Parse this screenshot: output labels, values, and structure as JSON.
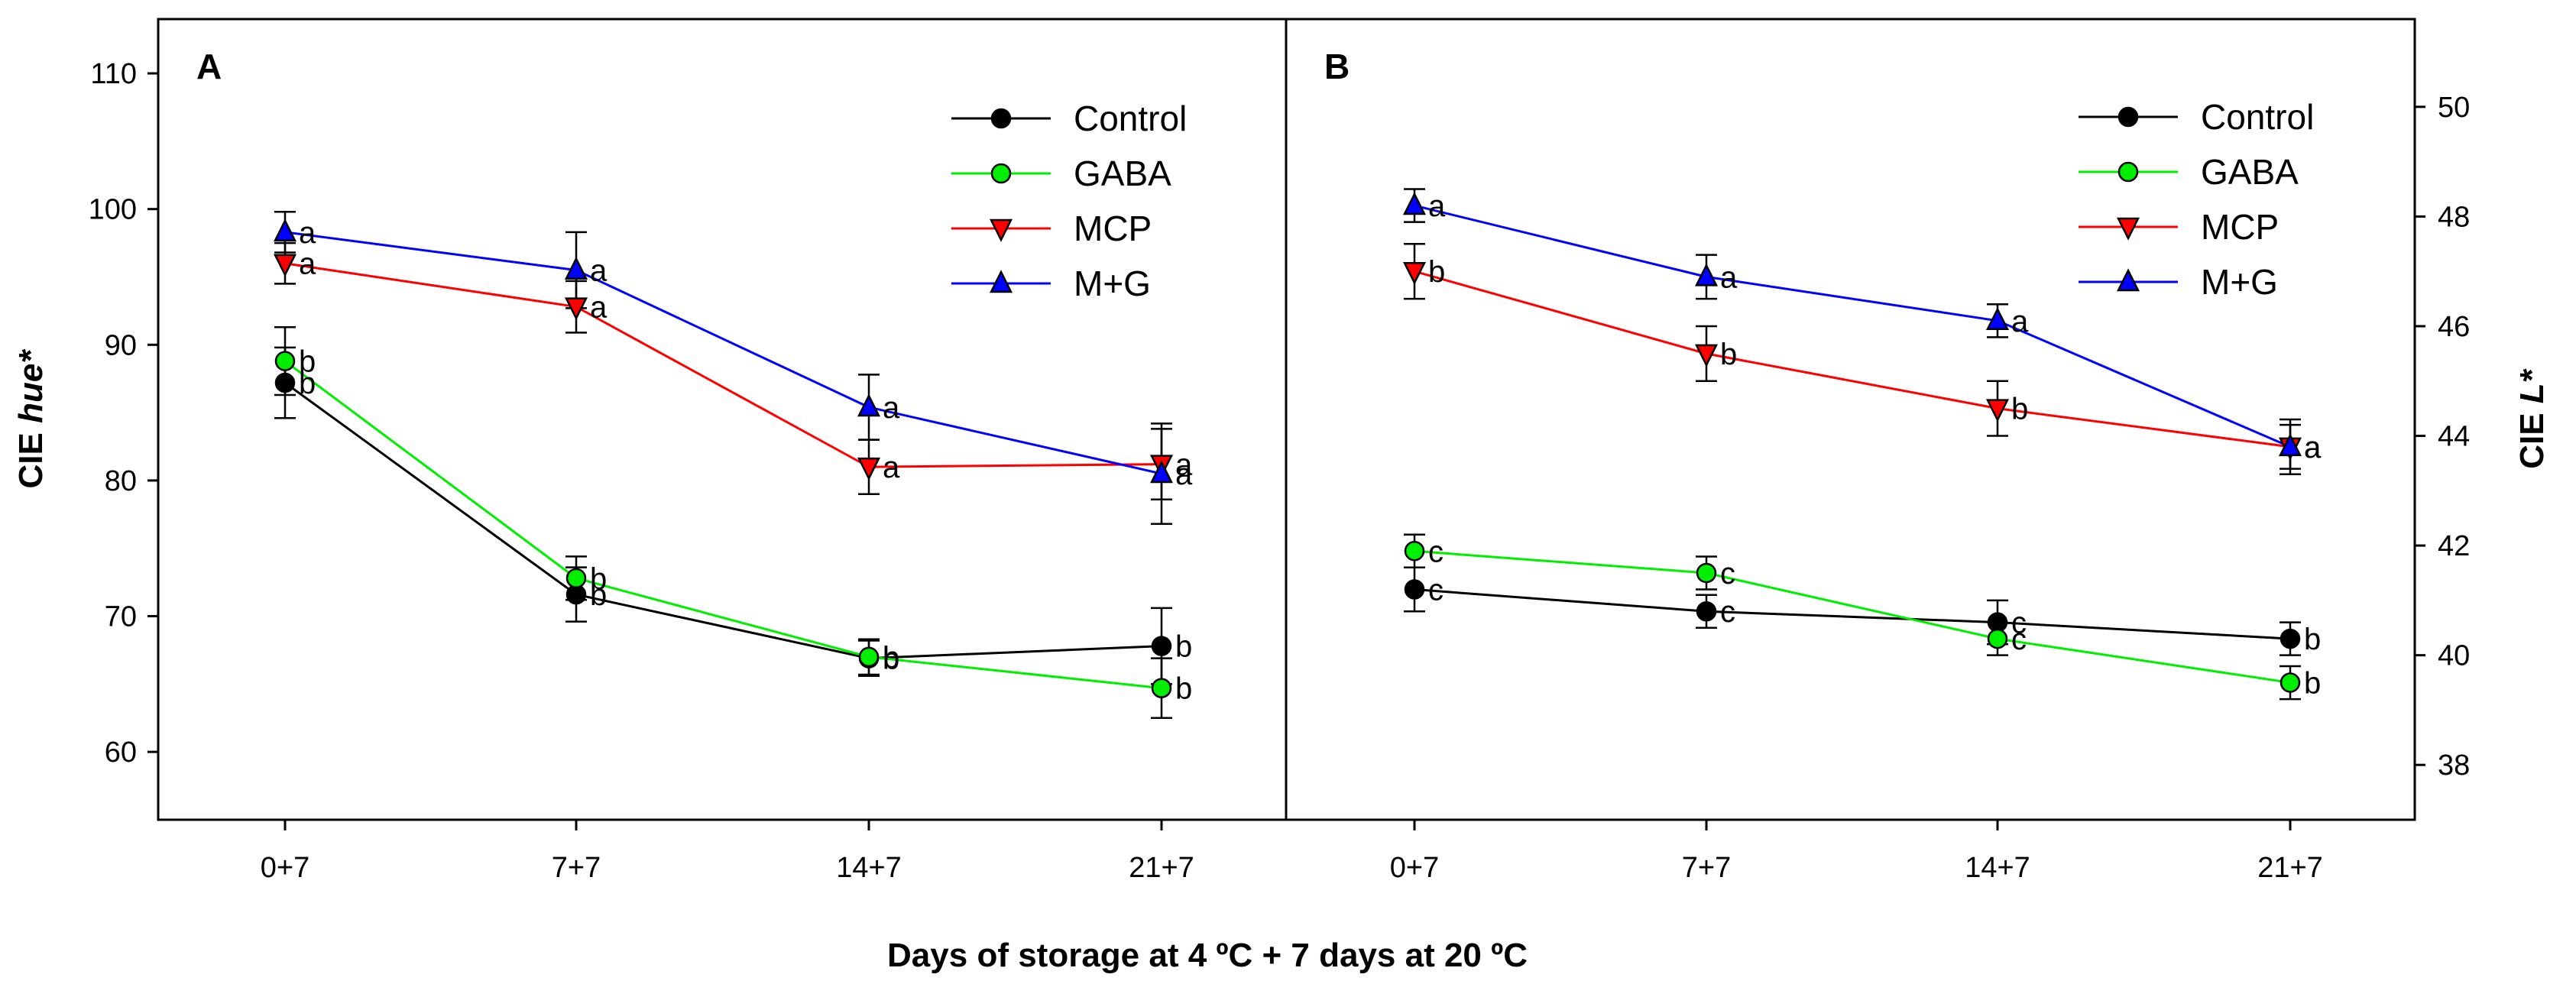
{
  "chart_data": [
    {
      "panel": "A",
      "type": "line",
      "categories": [
        "0+7",
        "7+7",
        "14+7",
        "21+7"
      ],
      "ylabel_prefix": "CIE ",
      "ylabel_italic": "hue*",
      "ylim": [
        55,
        114
      ],
      "yticks": [
        "60",
        "70",
        "80",
        "90",
        "100",
        "110"
      ],
      "series": [
        {
          "name": "Control",
          "color": "#000000",
          "marker": "circle",
          "values": [
            87.2,
            71.6,
            66.9,
            67.8
          ],
          "errors": [
            2.6,
            2.0,
            1.3,
            2.8
          ],
          "letters": [
            "b",
            "b",
            "b",
            "b"
          ]
        },
        {
          "name": "GABA",
          "color": "#00ee00",
          "marker": "circle",
          "values": [
            88.8,
            72.8,
            67.0,
            64.7
          ],
          "errors": [
            2.5,
            1.6,
            1.3,
            2.2
          ],
          "letters": [
            "b",
            "b",
            "b",
            "b"
          ]
        },
        {
          "name": "MCP",
          "color": "#ff0000",
          "marker": "triangle-down",
          "values": [
            96.0,
            92.8,
            81.0,
            81.2
          ],
          "errors": [
            1.5,
            1.9,
            2.0,
            2.6
          ],
          "letters": [
            "a",
            "a",
            "a",
            "a"
          ]
        },
        {
          "name": "M+G",
          "color": "#0000ff",
          "marker": "triangle-up",
          "values": [
            98.3,
            95.5,
            85.4,
            80.5
          ],
          "errors": [
            1.5,
            2.8,
            2.4,
            3.7
          ],
          "letters": [
            "a",
            "a",
            "a",
            "a"
          ]
        }
      ]
    },
    {
      "panel": "B",
      "type": "line",
      "categories": [
        "0+7",
        "7+7",
        "14+7",
        "21+7"
      ],
      "ylabel_prefix": "CIE ",
      "ylabel_italic": "L*",
      "ylim": [
        37,
        51.6
      ],
      "yticks": [
        "38",
        "40",
        "42",
        "44",
        "46",
        "48",
        "50"
      ],
      "series": [
        {
          "name": "Control",
          "color": "#000000",
          "marker": "circle",
          "values": [
            41.2,
            40.8,
            40.6,
            40.3
          ],
          "errors": [
            0.4,
            0.3,
            0.4,
            0.3
          ],
          "letters": [
            "c",
            "c",
            "c",
            "b"
          ]
        },
        {
          "name": "GABA",
          "color": "#00ee00",
          "marker": "circle",
          "values": [
            41.9,
            41.5,
            40.3,
            39.5
          ],
          "errors": [
            0.3,
            0.3,
            0.3,
            0.3
          ],
          "letters": [
            "c",
            "c",
            "c",
            "b"
          ]
        },
        {
          "name": "MCP",
          "color": "#ff0000",
          "marker": "triangle-down",
          "values": [
            47.0,
            45.5,
            44.5,
            43.8
          ],
          "errors": [
            0.5,
            0.5,
            0.5,
            0.5
          ],
          "letters": [
            "b",
            "b",
            "b",
            "a"
          ]
        },
        {
          "name": "M+G",
          "color": "#0000ff",
          "marker": "triangle-up",
          "values": [
            48.2,
            46.9,
            46.1,
            43.8
          ],
          "errors": [
            0.3,
            0.4,
            0.3,
            0.4
          ],
          "letters": [
            "a",
            "a",
            "a",
            "a"
          ]
        }
      ]
    }
  ],
  "xlabel": "Days of storage at 4 ºC + 7 days at 20 ºC"
}
